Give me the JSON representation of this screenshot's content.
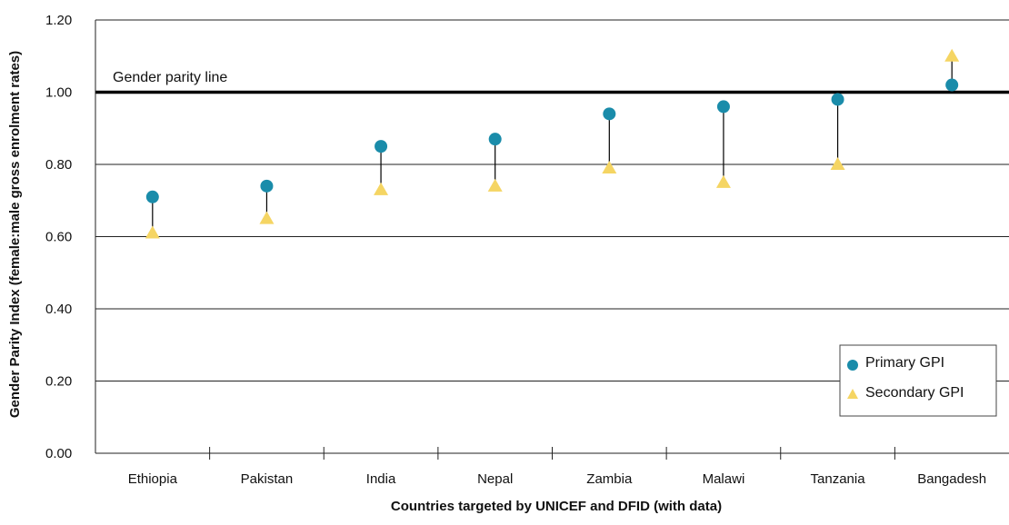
{
  "chart_data": {
    "type": "scatter",
    "xlabel": "Countries targeted by UNICEF and DFID (with data)",
    "ylabel": "Gender Parity Index (female:male gross enrolment rates)",
    "ylim": [
      0,
      1.2
    ],
    "y_ticks": [
      "0.00",
      "0.20",
      "0.40",
      "0.60",
      "0.80",
      "1.00",
      "1.20"
    ],
    "categories": [
      "Ethiopia",
      "Pakistan",
      "India",
      "Nepal",
      "Zambia",
      "Malawi",
      "Tanzania",
      "Bangadesh"
    ],
    "series": [
      {
        "name": "Primary GPI",
        "marker": "circle",
        "color": "#1a8caa",
        "values": [
          0.71,
          0.74,
          0.85,
          0.87,
          0.94,
          0.96,
          0.98,
          1.02
        ]
      },
      {
        "name": "Secondary GPI",
        "marker": "triangle",
        "color": "#f5d563",
        "values": [
          0.61,
          0.65,
          0.73,
          0.74,
          0.79,
          0.75,
          0.8,
          1.1
        ]
      }
    ],
    "reference_line": {
      "value": 1.0,
      "label": "Gender parity line"
    },
    "grid": true,
    "legend_position": "bottom-right"
  }
}
